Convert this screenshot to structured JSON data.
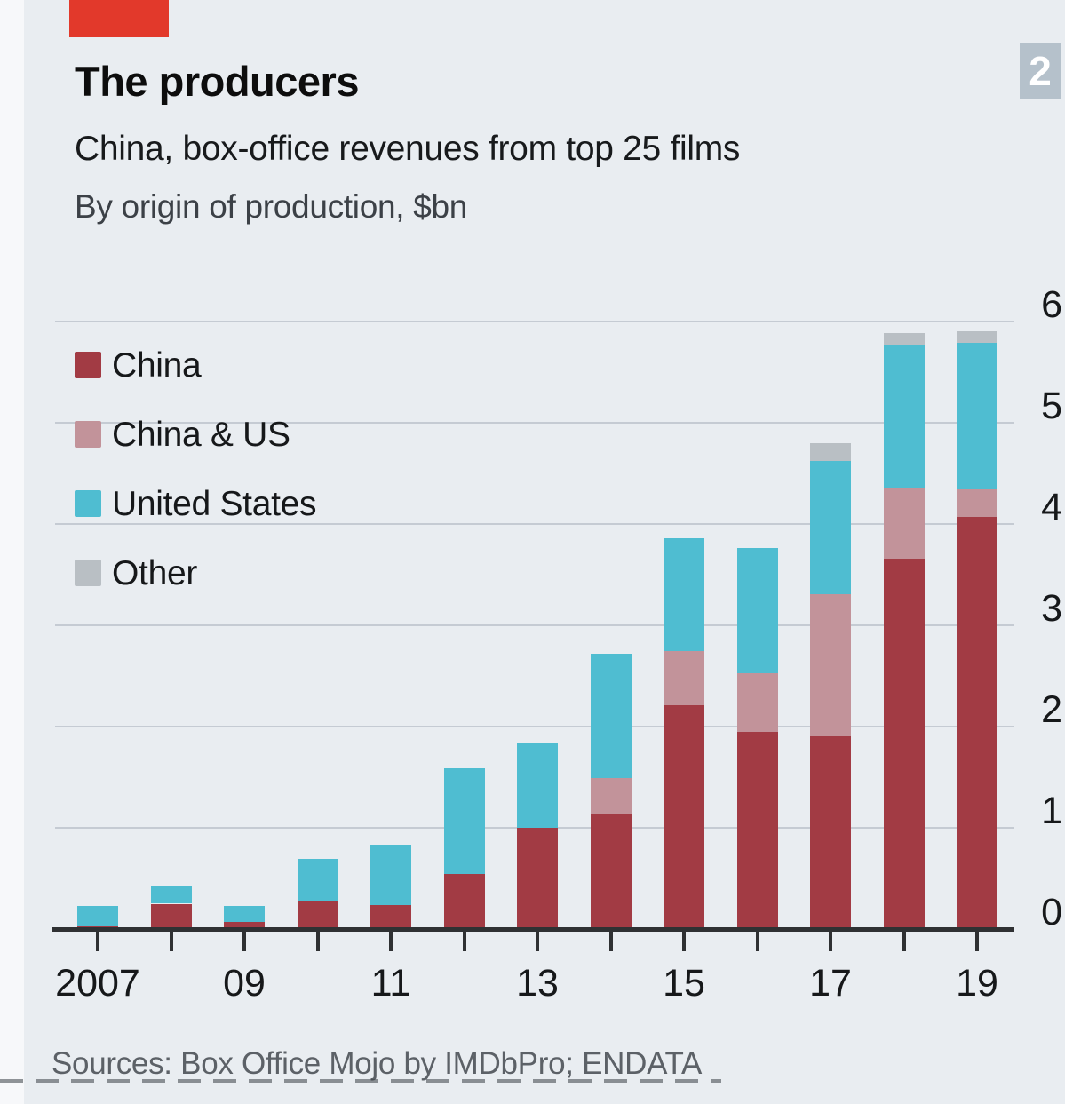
{
  "badge_label": "2",
  "header": {
    "title": "The producers",
    "subtitle": "China, box-office revenues from top 25 films",
    "unit_note": "By origin of production, $bn"
  },
  "source_line": "Sources: Box Office Mojo by IMDbPro; ENDATA",
  "colors": {
    "background": "#e9edf1",
    "accent_tab_red": "#e2392b",
    "badge_gray_blue": "#b5c1cb",
    "gridline": "#c5cbd3",
    "axis": "#2f3133",
    "china": "#a23b44",
    "china_us": "#c2939a",
    "united_states": "#4fbdd1",
    "other": "#b9bfc4"
  },
  "chart_data": {
    "type": "bar",
    "stacked": true,
    "title": "China, box-office revenues from top 25 films",
    "subtitle": "By origin of production, $bn",
    "unit": "$bn",
    "categories": [
      2007,
      2008,
      2009,
      2010,
      2011,
      2012,
      2013,
      2014,
      2015,
      2016,
      2017,
      2018,
      2019
    ],
    "x_tick_labels": [
      "2007",
      "09",
      "11",
      "13",
      "15",
      "17",
      "19"
    ],
    "series": [
      {
        "name": "China",
        "color": "#a23b44",
        "values": [
          0.03,
          0.25,
          0.07,
          0.28,
          0.24,
          0.54,
          1.0,
          1.14,
          2.21,
          1.95,
          1.9,
          3.66,
          4.07
        ]
      },
      {
        "name": "China & US",
        "color": "#c2939a",
        "values": [
          0,
          0,
          0,
          0,
          0,
          0,
          0,
          0.35,
          0.54,
          0.58,
          1.41,
          0.7,
          0.27
        ]
      },
      {
        "name": "United States",
        "color": "#4fbdd1",
        "values": [
          0.2,
          0.17,
          0.16,
          0.41,
          0.59,
          1.05,
          0.84,
          1.23,
          1.11,
          1.23,
          1.31,
          1.41,
          1.45
        ]
      },
      {
        "name": "Other",
        "color": "#b9bfc4",
        "values": [
          0,
          0,
          0,
          0,
          0,
          0,
          0,
          0,
          0,
          0,
          0.18,
          0.12,
          0.11
        ]
      }
    ],
    "ylim": [
      0,
      6
    ],
    "yticks": [
      0,
      1,
      2,
      3,
      4,
      5,
      6
    ],
    "grid": true,
    "legend_position": "top-left-inside",
    "y_axis_side": "right"
  }
}
